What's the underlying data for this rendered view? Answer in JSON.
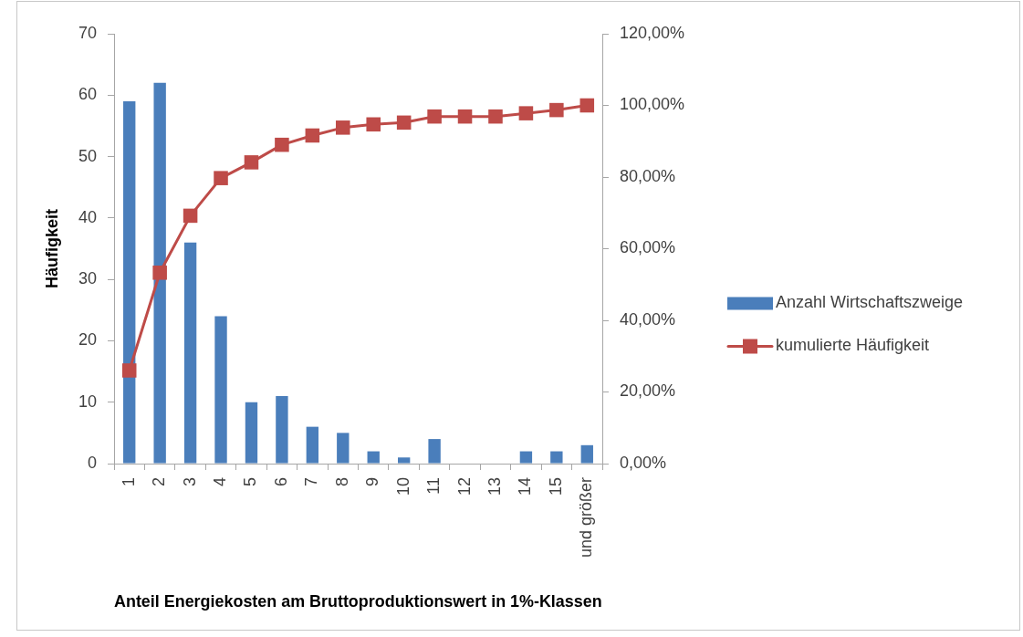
{
  "chart_data": {
    "type": "bar",
    "xlabel": "Anteil Energiekosten am Bruttoproduktionswert in 1%-Klassen",
    "ylabel": "Häufigkeit",
    "categories": [
      "1",
      "2",
      "3",
      "4",
      "5",
      "6",
      "7",
      "8",
      "9",
      "10",
      "11",
      "12",
      "13",
      "14",
      "15",
      "und größer"
    ],
    "series": [
      {
        "name": "Anzahl Wirtschaftszweige",
        "color": "#4a7ebb",
        "values": [
          59,
          62,
          36,
          24,
          10,
          11,
          6,
          5,
          2,
          1,
          4,
          0,
          0,
          2,
          2,
          3
        ]
      },
      {
        "name": "kumulierte Häufigkeit",
        "type": "line",
        "axis": "y2",
        "color": "#be4b48",
        "values": [
          26.0,
          53.3,
          69.2,
          79.7,
          84.1,
          89.0,
          91.6,
          93.8,
          94.7,
          95.2,
          96.9,
          96.9,
          96.9,
          97.8,
          98.7,
          100
        ]
      }
    ],
    "ylim": [
      0,
      70
    ],
    "yticks": [
      0,
      10,
      20,
      30,
      40,
      50,
      60,
      70
    ],
    "y2lim": [
      0,
      120
    ],
    "y2ticks": [
      {
        "value": 0,
        "label": "0,00%"
      },
      {
        "value": 20,
        "label": "20,00%"
      },
      {
        "value": 40,
        "label": "40,00%"
      },
      {
        "value": 60,
        "label": "60,00%"
      },
      {
        "value": 80,
        "label": "80,00%"
      },
      {
        "value": 100,
        "label": "100,00%"
      },
      {
        "value": 120,
        "label": "120,00%"
      }
    ],
    "marker": "square",
    "legend": "right"
  }
}
